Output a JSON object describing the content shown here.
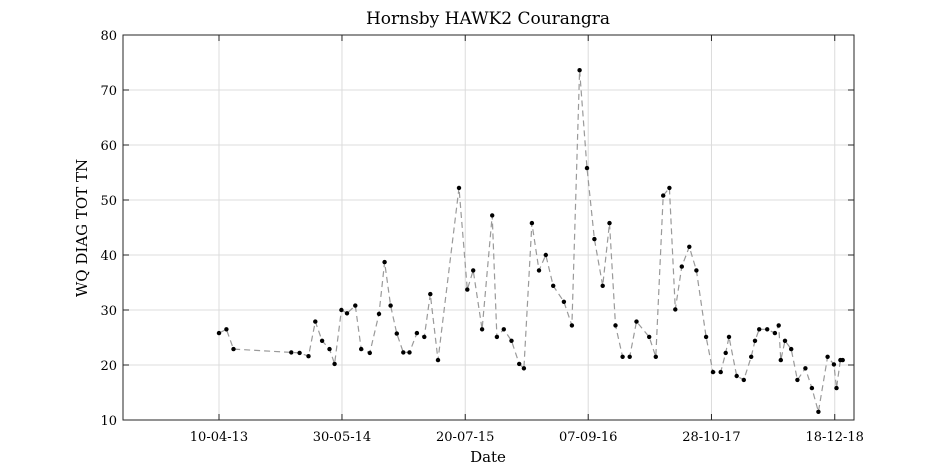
{
  "chart_data": {
    "type": "line",
    "title": "Hornsby HAWK2 Courangra",
    "xlabel": "Date",
    "ylabel": "WQ DIAG TOT TN",
    "grid": true,
    "line_style": "dashed",
    "line_color": "#9a9a9a",
    "marker_color": "#000000",
    "ylim": [
      10,
      80
    ],
    "yticks": [
      "10",
      "20",
      "30",
      "40",
      "50",
      "60",
      "70",
      "80"
    ],
    "xlim": [
      "2012-05-21",
      "2019-02-21"
    ],
    "xticks": [
      {
        "date": "2013-04-10",
        "label": "10-04-13"
      },
      {
        "date": "2014-05-30",
        "label": "30-05-14"
      },
      {
        "date": "2015-07-20",
        "label": "20-07-15"
      },
      {
        "date": "2016-09-07",
        "label": "07-09-16"
      },
      {
        "date": "2017-10-28",
        "label": "28-10-17"
      },
      {
        "date": "2018-12-18",
        "label": "18-12-18"
      }
    ],
    "series": [
      {
        "points": [
          [
            "2013-04-10",
            25.8
          ],
          [
            "2013-05-05",
            26.5
          ],
          [
            "2013-05-29",
            22.9
          ],
          [
            "2013-12-10",
            22.3
          ],
          [
            "2014-01-07",
            22.2
          ],
          [
            "2014-02-06",
            21.6
          ],
          [
            "2014-03-01",
            27.9
          ],
          [
            "2014-03-24",
            24.4
          ],
          [
            "2014-04-18",
            22.9
          ],
          [
            "2014-05-05",
            20.2
          ],
          [
            "2014-05-28",
            30.0
          ],
          [
            "2014-06-16",
            29.4
          ],
          [
            "2014-07-14",
            30.8
          ],
          [
            "2014-08-03",
            22.9
          ],
          [
            "2014-09-01",
            22.2
          ],
          [
            "2014-10-02",
            29.3
          ],
          [
            "2014-10-21",
            38.7
          ],
          [
            "2014-11-10",
            30.8
          ],
          [
            "2014-12-01",
            25.7
          ],
          [
            "2014-12-23",
            22.3
          ],
          [
            "2015-01-13",
            22.3
          ],
          [
            "2015-02-07",
            25.8
          ],
          [
            "2015-03-04",
            25.1
          ],
          [
            "2015-03-24",
            32.9
          ],
          [
            "2015-04-19",
            20.9
          ],
          [
            "2015-06-29",
            52.2
          ],
          [
            "2015-07-27",
            33.7
          ],
          [
            "2015-08-16",
            37.2
          ],
          [
            "2015-09-15",
            26.5
          ],
          [
            "2015-10-19",
            47.2
          ],
          [
            "2015-11-04",
            25.1
          ],
          [
            "2015-11-27",
            26.5
          ],
          [
            "2015-12-23",
            24.4
          ],
          [
            "2016-01-18",
            20.2
          ],
          [
            "2016-02-03",
            19.4
          ],
          [
            "2016-03-01",
            45.8
          ],
          [
            "2016-03-25",
            37.2
          ],
          [
            "2016-04-17",
            40.0
          ],
          [
            "2016-05-12",
            34.4
          ],
          [
            "2016-06-17",
            31.5
          ],
          [
            "2016-07-14",
            27.2
          ],
          [
            "2016-08-09",
            73.6
          ],
          [
            "2016-09-03",
            55.8
          ],
          [
            "2016-09-28",
            42.9
          ],
          [
            "2016-10-26",
            34.4
          ],
          [
            "2016-11-18",
            45.8
          ],
          [
            "2016-12-08",
            27.2
          ],
          [
            "2017-01-01",
            21.5
          ],
          [
            "2017-01-25",
            21.5
          ],
          [
            "2017-02-17",
            27.9
          ],
          [
            "2017-04-01",
            25.1
          ],
          [
            "2017-04-23",
            21.5
          ],
          [
            "2017-05-18",
            50.8
          ],
          [
            "2017-06-08",
            52.2
          ],
          [
            "2017-06-28",
            30.1
          ],
          [
            "2017-07-20",
            37.9
          ],
          [
            "2017-08-14",
            41.5
          ],
          [
            "2017-09-07",
            37.2
          ],
          [
            "2017-10-10",
            25.1
          ],
          [
            "2017-11-02",
            18.7
          ],
          [
            "2017-11-28",
            18.7
          ],
          [
            "2017-12-15",
            22.2
          ],
          [
            "2017-12-26",
            25.1
          ],
          [
            "2018-01-21",
            18.0
          ],
          [
            "2018-02-14",
            17.3
          ],
          [
            "2018-03-11",
            21.5
          ],
          [
            "2018-03-24",
            24.4
          ],
          [
            "2018-04-07",
            26.5
          ],
          [
            "2018-05-04",
            26.5
          ],
          [
            "2018-05-30",
            25.8
          ],
          [
            "2018-06-12",
            27.2
          ],
          [
            "2018-06-19",
            20.9
          ],
          [
            "2018-07-03",
            24.4
          ],
          [
            "2018-07-24",
            22.9
          ],
          [
            "2018-08-14",
            17.3
          ],
          [
            "2018-09-10",
            19.4
          ],
          [
            "2018-10-02",
            15.8
          ],
          [
            "2018-10-24",
            11.5
          ],
          [
            "2018-11-24",
            21.5
          ],
          [
            "2018-12-15",
            20.1
          ],
          [
            "2018-12-24",
            15.8
          ],
          [
            "2019-01-06",
            20.9
          ],
          [
            "2019-01-14",
            20.9
          ]
        ]
      }
    ]
  }
}
